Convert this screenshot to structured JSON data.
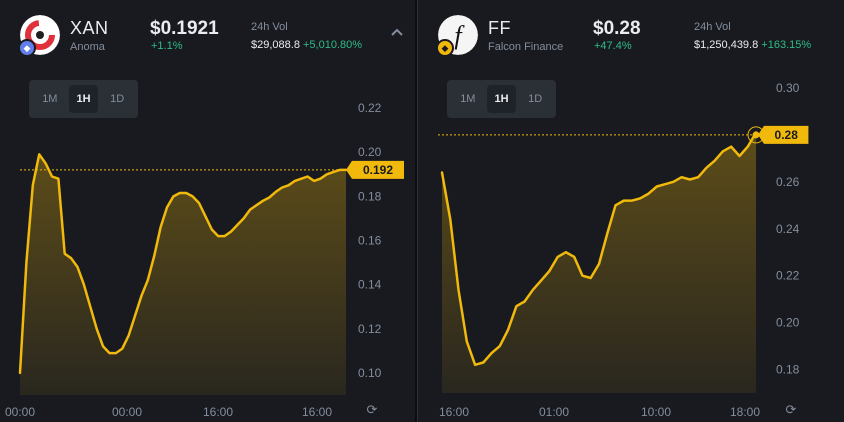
{
  "cards": [
    {
      "symbol": "XAN",
      "name": "Anoma",
      "price": "$0.1921",
      "change": "+1.1%",
      "vol_label": "24h Vol",
      "vol_value": "$29,088.8",
      "vol_change": "+5,010.80%",
      "timeframes": [
        "1M",
        "1H",
        "1D"
      ],
      "active_timeframe": "1H",
      "current_price_label": "0.192",
      "logo_icon": "anoma-logo-icon",
      "chain_icon": "ethereum-icon",
      "colors": {
        "line": "#f0b90b",
        "positive": "#2ebd85"
      },
      "chart_data": {
        "type": "area",
        "ylim": [
          0.09,
          0.23
        ],
        "y_ticks": [
          "0.22",
          "0.20",
          "0.18",
          "0.16",
          "0.14",
          "0.12",
          "0.10"
        ],
        "y_tick_values": [
          0.22,
          0.2,
          0.18,
          0.16,
          0.14,
          0.12,
          0.1
        ],
        "x_ticks": [
          "00:00",
          "00:00",
          "16:00",
          "16:00"
        ],
        "current_value": 0.192,
        "series": [
          {
            "values": [
              0.1,
              0.15,
              0.185,
              0.199,
              0.195,
              0.189,
              0.188,
              0.154,
              0.152,
              0.148,
              0.14,
              0.13,
              0.12,
              0.112,
              0.109,
              0.109,
              0.111,
              0.117,
              0.126,
              0.135,
              0.142,
              0.153,
              0.166,
              0.175,
              0.18,
              0.1815,
              0.1815,
              0.18,
              0.177,
              0.171,
              0.165,
              0.162,
              0.162,
              0.164,
              0.167,
              0.17,
              0.174,
              0.176,
              0.178,
              0.1795,
              0.182,
              0.184,
              0.185,
              0.187,
              0.188,
              0.189,
              0.187,
              0.188,
              0.19,
              0.191,
              0.192,
              0.192
            ]
          }
        ]
      }
    },
    {
      "symbol": "FF",
      "name": "Falcon Finance",
      "price": "$0.28",
      "change": "+47.4%",
      "vol_label": "24h Vol",
      "vol_value": "$1,250,439.8",
      "vol_change": "+163.15%",
      "timeframes": [
        "1M",
        "1H",
        "1D"
      ],
      "active_timeframe": "1H",
      "current_price_label": "0.28",
      "logo_icon": "falcon-finance-logo-icon",
      "chain_icon": "bnb-chain-icon",
      "colors": {
        "line": "#f0b90b",
        "positive": "#2ebd85"
      },
      "chart_data": {
        "type": "area",
        "ylim": [
          0.17,
          0.3
        ],
        "y_ticks": [
          "0.30",
          "0.28",
          "0.26",
          "0.24",
          "0.22",
          "0.20",
          "0.18"
        ],
        "y_tick_values": [
          0.3,
          0.28,
          0.26,
          0.24,
          0.22,
          0.2,
          0.18
        ],
        "x_ticks": [
          "16:00",
          "01:00",
          "10:00",
          "18:00"
        ],
        "current_value": 0.28,
        "series": [
          {
            "values": [
              0.264,
              0.244,
              0.214,
              0.192,
              0.182,
              0.183,
              0.187,
              0.19,
              0.197,
              0.207,
              0.209,
              0.214,
              0.218,
              0.222,
              0.228,
              0.23,
              0.228,
              0.22,
              0.219,
              0.225,
              0.238,
              0.25,
              0.252,
              0.252,
              0.253,
              0.255,
              0.258,
              0.259,
              0.26,
              0.262,
              0.261,
              0.262,
              0.266,
              0.269,
              0.273,
              0.275,
              0.271,
              0.275,
              0.281
            ]
          }
        ]
      }
    }
  ]
}
